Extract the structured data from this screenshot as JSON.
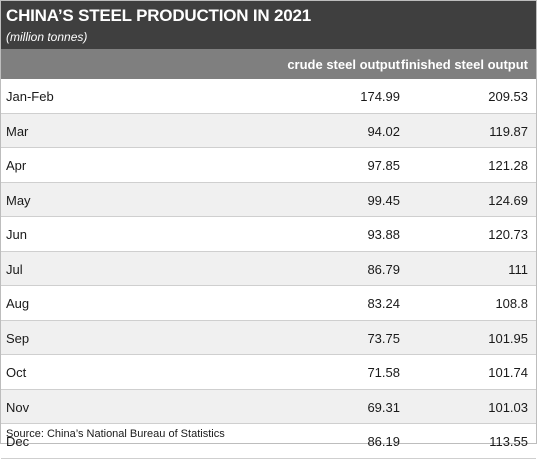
{
  "chart_data": {
    "type": "table",
    "title": "CHINA’S STEEL PRODUCTION IN 2021",
    "subtitle": "(million tonnes)",
    "columns": [
      "",
      "crude steel output",
      "finished steel output"
    ],
    "rows": [
      {
        "month": "Jan-Feb",
        "crude": "174.99",
        "finished": "209.53"
      },
      {
        "month": "Mar",
        "crude": "94.02",
        "finished": "119.87"
      },
      {
        "month": "Apr",
        "crude": "97.85",
        "finished": "121.28"
      },
      {
        "month": "May",
        "crude": "99.45",
        "finished": "124.69"
      },
      {
        "month": "Jun",
        "crude": "93.88",
        "finished": "120.73"
      },
      {
        "month": "Jul",
        "crude": "86.79",
        "finished": "111"
      },
      {
        "month": "Aug",
        "crude": "83.24",
        "finished": "108.8"
      },
      {
        "month": "Sep",
        "crude": "73.75",
        "finished": "101.95"
      },
      {
        "month": "Oct",
        "crude": "71.58",
        "finished": "101.74"
      },
      {
        "month": "Nov",
        "crude": "69.31",
        "finished": "101.03"
      },
      {
        "month": "Dec",
        "crude": "86.19",
        "finished": "113.55"
      }
    ],
    "source": "Source: China’s National Bureau of Statistics"
  },
  "colors": {
    "header_bg": "#3f3f3f",
    "column_header_bg": "#7f7f7f",
    "row_alt_bg": "#f0f0f0",
    "divider": "#cfcfcf"
  }
}
